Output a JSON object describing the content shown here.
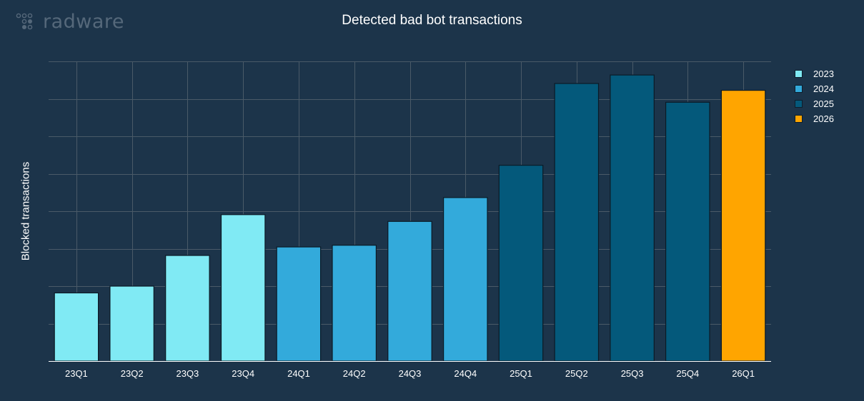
{
  "brand": {
    "name": "radware"
  },
  "chart_data": {
    "type": "bar",
    "title": "Detected bad bot transactions",
    "xlabel": "",
    "ylabel": "Blocked transactions",
    "categories": [
      "23Q1",
      "23Q2",
      "23Q3",
      "23Q4",
      "24Q1",
      "24Q2",
      "24Q3",
      "24Q4",
      "25Q1",
      "25Q2",
      "25Q3",
      "25Q4",
      "26Q1"
    ],
    "values": [
      20,
      22,
      31,
      43,
      33.5,
      34,
      41,
      48,
      57.5,
      81.5,
      84,
      76,
      79.5
    ],
    "groups": [
      "2023",
      "2023",
      "2023",
      "2023",
      "2024",
      "2024",
      "2024",
      "2024",
      "2025",
      "2025",
      "2025",
      "2025",
      "2026"
    ],
    "ylim": [
      0,
      88
    ],
    "y_tick_labels_shown": false,
    "grid": true,
    "legend": {
      "position": "top-right",
      "entries": [
        {
          "name": "2023",
          "color": "#80eaf4"
        },
        {
          "name": "2024",
          "color": "#33aadb"
        },
        {
          "name": "2025",
          "color": "#04597b"
        },
        {
          "name": "2026",
          "color": "#ffa500"
        }
      ]
    }
  }
}
